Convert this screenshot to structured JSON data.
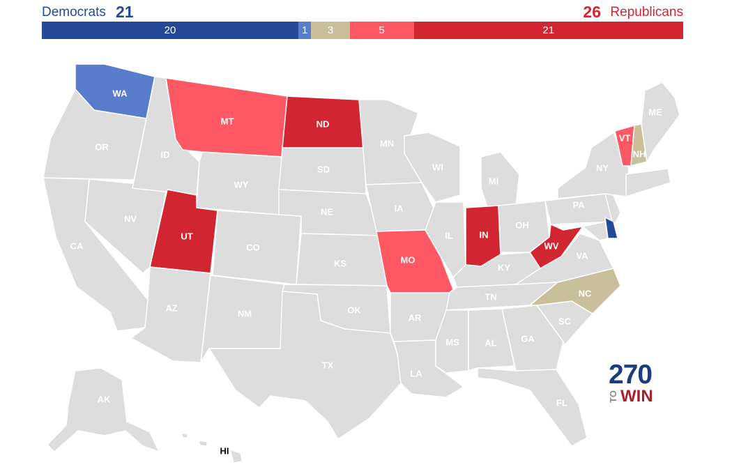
{
  "header": {
    "dem_label": "Democrats",
    "dem_total": "21",
    "rep_total": "26",
    "rep_label": "Republicans"
  },
  "bar": [
    {
      "label": "20",
      "value": 20,
      "color": "#244999"
    },
    {
      "label": "1",
      "value": 1,
      "color": "#577ccc"
    },
    {
      "label": "3",
      "value": 3,
      "color": "#c9c09b"
    },
    {
      "label": "5",
      "value": 5,
      "color": "#ff5865"
    },
    {
      "label": "21",
      "value": 21,
      "color": "#d22532"
    }
  ],
  "colors": {
    "safe_dem": "#244999",
    "likely_dem": "#577ccc",
    "tossup": "#c9c09b",
    "likely_rep": "#ff5865",
    "safe_rep": "#d22532",
    "no_race": "#dddddd"
  },
  "states": {
    "WA": "WA",
    "OR": "OR",
    "CA": "CA",
    "NV": "NV",
    "ID": "ID",
    "MT": "MT",
    "WY": "WY",
    "UT": "UT",
    "AZ": "AZ",
    "CO": "CO",
    "NM": "NM",
    "ND": "ND",
    "SD": "SD",
    "NE": "NE",
    "KS": "KS",
    "OK": "OK",
    "TX": "TX",
    "MN": "MN",
    "IA": "IA",
    "MO": "MO",
    "AR": "AR",
    "LA": "LA",
    "WI": "WI",
    "IL": "IL",
    "MI": "MI",
    "IN": "IN",
    "OH": "OH",
    "KY": "KY",
    "TN": "TN",
    "MS": "MS",
    "AL": "AL",
    "GA": "GA",
    "FL": "FL",
    "SC": "SC",
    "NC": "NC",
    "VA": "VA",
    "WV": "WV",
    "PA": "PA",
    "NY": "NY",
    "VT": "VT",
    "NH": "NH",
    "ME": "ME",
    "AK": "AK",
    "HI": "HI"
  },
  "logo": {
    "number": "270",
    "to": "TO",
    "win": "WIN"
  }
}
